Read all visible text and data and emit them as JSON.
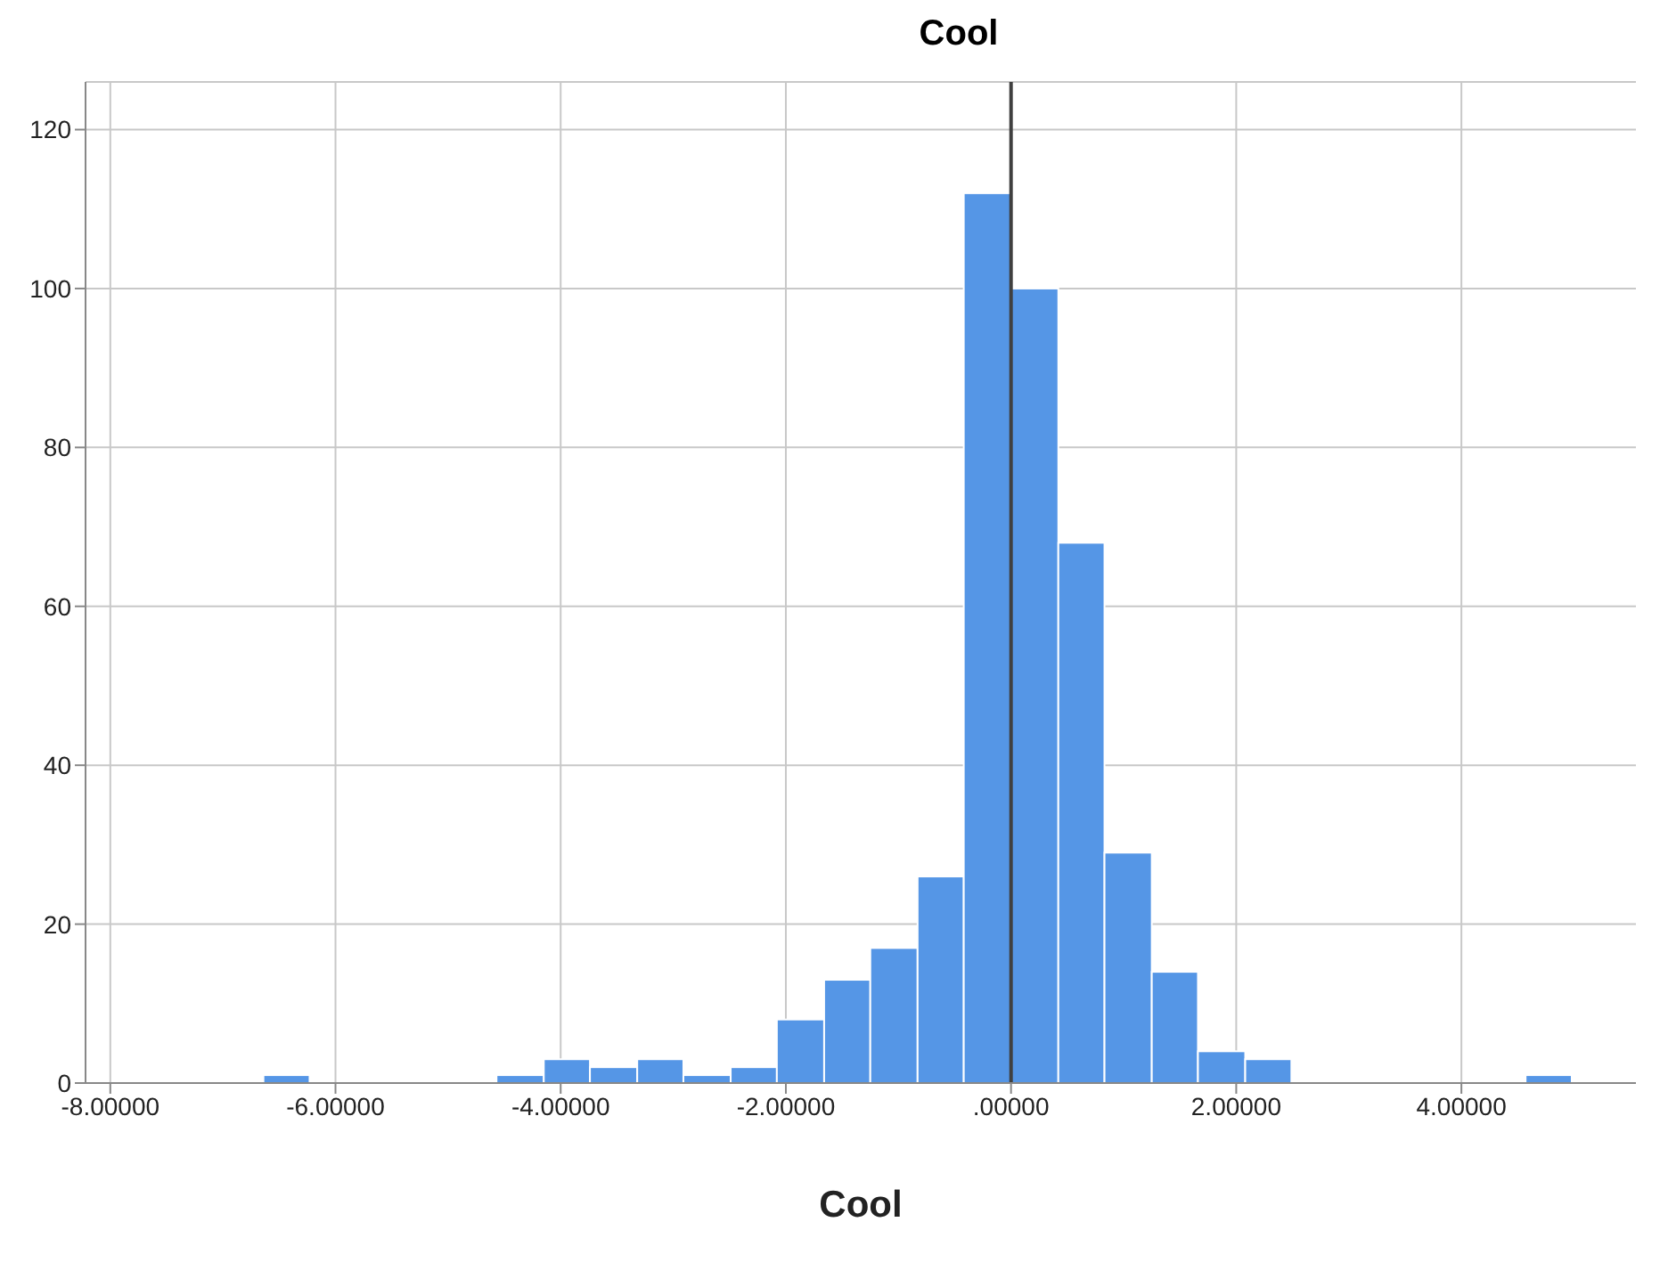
{
  "chart_data": {
    "type": "histogram",
    "title": "Cool",
    "xlabel": "Cool",
    "bins": [
      -6.64,
      -6.23,
      -4.57,
      -4.15,
      -3.74,
      -3.32,
      -2.91,
      -2.49,
      -2.08,
      -1.66,
      -1.25,
      -0.83,
      -0.42,
      0,
      0.42,
      0.83,
      1.25,
      1.66,
      2.08,
      2.49,
      4.57,
      4.98
    ],
    "values": [
      1,
      0,
      1,
      3,
      2,
      3,
      1,
      2,
      8,
      13,
      17,
      26,
      112,
      100,
      68,
      29,
      14,
      4,
      3,
      0,
      1
    ],
    "color": "#5596e6",
    "xlim": [
      -8.22,
      5.55
    ],
    "xticks": [
      {
        "value": -8,
        "label": "-8.00000"
      },
      {
        "value": -6,
        "label": "-6.00000"
      },
      {
        "value": -4,
        "label": "-4.00000"
      },
      {
        "value": -2,
        "label": "-2.00000"
      },
      {
        "value": 0,
        "label": ".00000"
      },
      {
        "value": 2,
        "label": "2.00000"
      },
      {
        "value": 4,
        "label": "4.00000"
      }
    ],
    "ylim": [
      0,
      126
    ],
    "yticks": [
      0,
      20,
      40,
      60,
      80,
      100,
      120
    ],
    "grid": true,
    "ref_lines": [
      {
        "axis": "x",
        "value": 0,
        "color": "#404040"
      }
    ]
  }
}
